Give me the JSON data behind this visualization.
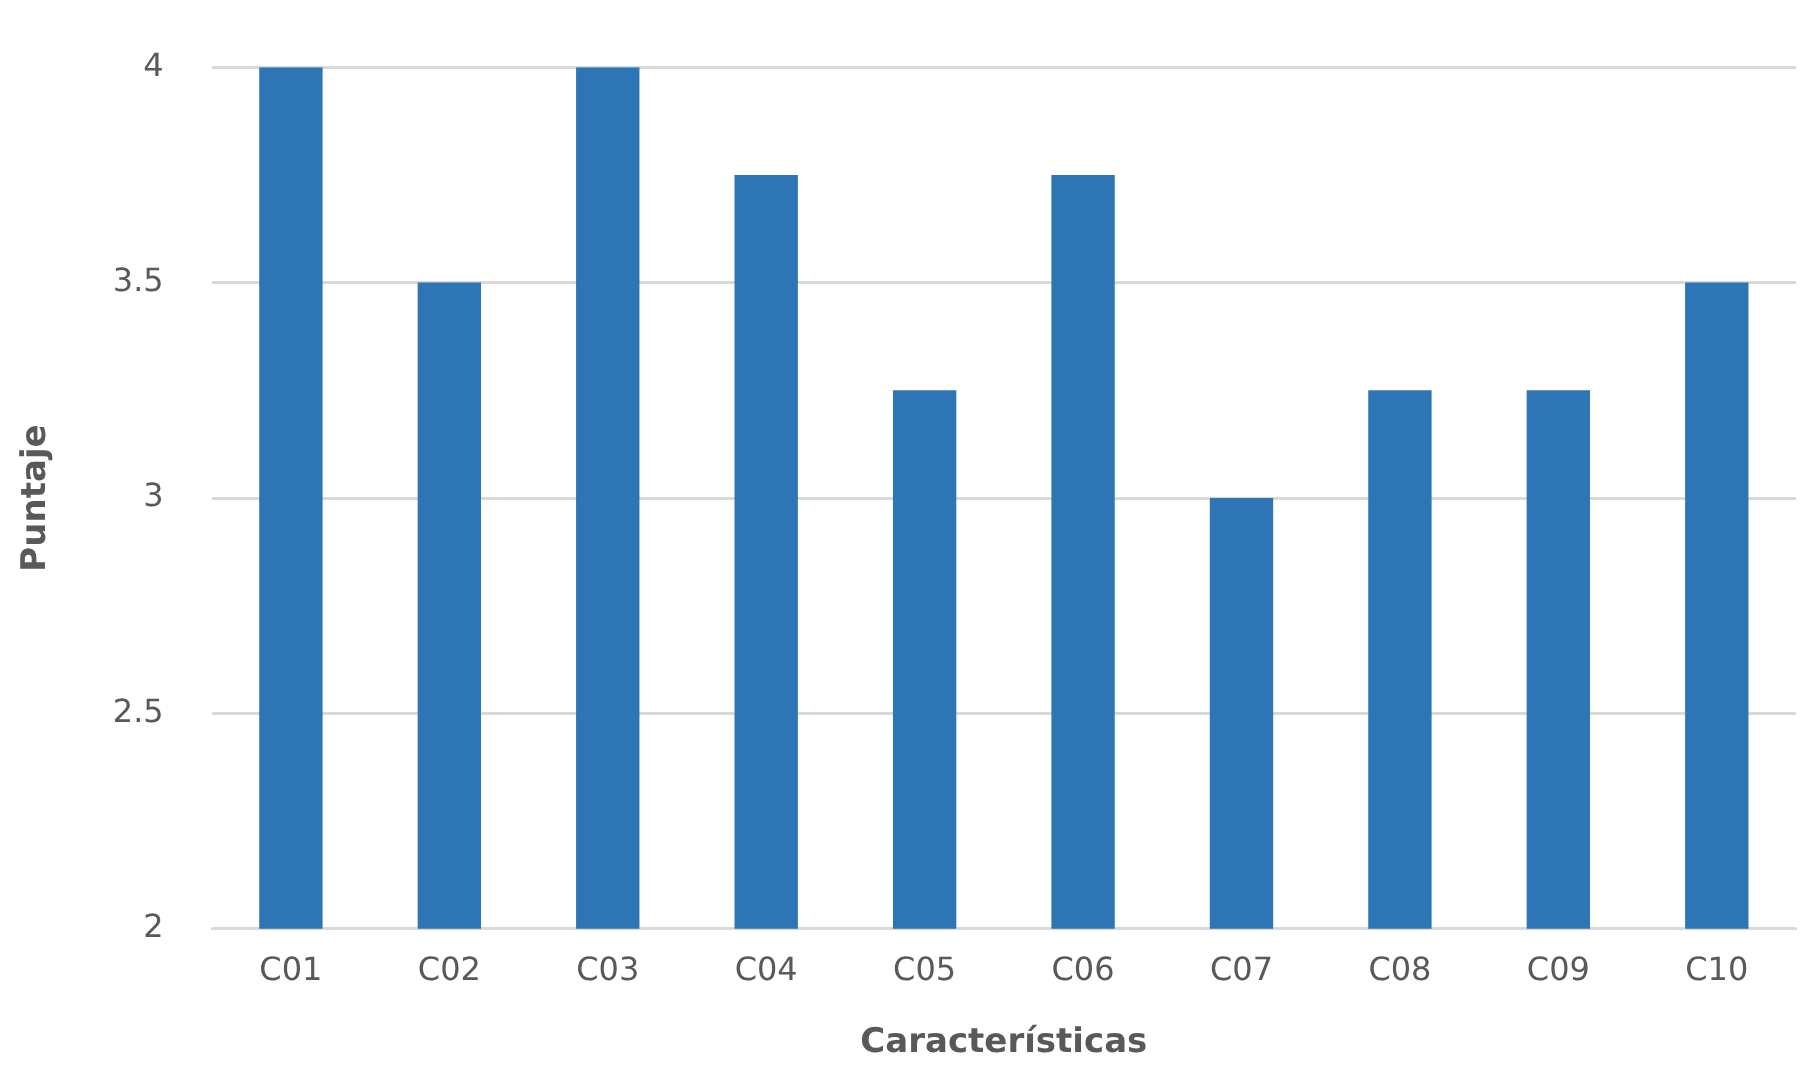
{
  "chart_data": {
    "type": "bar",
    "xlabel": "Características",
    "ylabel": "Puntaje",
    "categories": [
      "C01",
      "C02",
      "C03",
      "C04",
      "C05",
      "C06",
      "C07",
      "C08",
      "C09",
      "C10"
    ],
    "values": [
      4,
      3.5,
      4,
      3.75,
      3.25,
      3.75,
      3,
      3.25,
      3.25,
      3.5
    ],
    "color": "#2e75b6",
    "ylim": [
      2,
      4
    ],
    "yticks": [
      2,
      2.5,
      3,
      3.5,
      4
    ],
    "grid": "y",
    "legend": false
  }
}
